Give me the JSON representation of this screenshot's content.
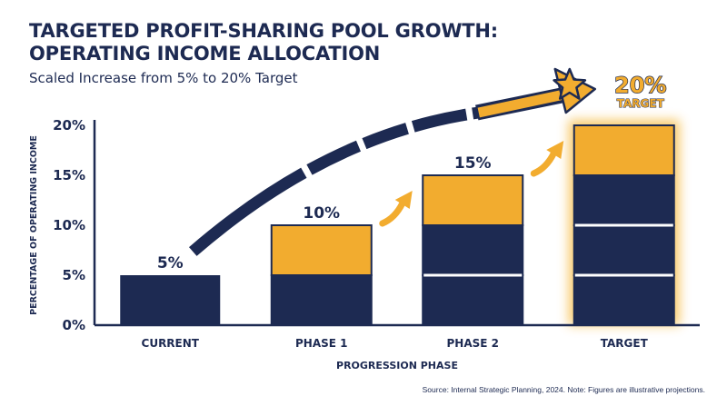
{
  "header": {
    "title_line1": "TARGETED PROFIT-SHARING POOL GROWTH:",
    "title_line2": "OPERATING INCOME ALLOCATION",
    "subtitle": "Scaled Increase from 5% to 20% Target"
  },
  "footer": {
    "source": "Source: Internal Strategic Planning, 2024. Note: Figures are illustrative projections."
  },
  "colors": {
    "navy": "#1d2a52",
    "gold": "#f2ac2f",
    "highlight_glow": "#f7c35a"
  },
  "badge": {
    "value": "20%",
    "label": "TARGET",
    "icon": "star-icon"
  },
  "chart_data": {
    "type": "bar",
    "stacked": true,
    "title": "TARGETED PROFIT-SHARING POOL GROWTH: OPERATING INCOME ALLOCATION",
    "subtitle": "Scaled Increase from 5% to 20% Target",
    "xlabel": "PROGRESSION PHASE",
    "ylabel": "PERCENTAGE OF OPERATING INCOME",
    "ylim": [
      0,
      20
    ],
    "yticks": [
      "0%",
      "5%",
      "10%",
      "15%",
      "20%"
    ],
    "categories": [
      "CURRENT",
      "PHASE 1",
      "PHASE 2",
      "TARGET"
    ],
    "totals": [
      5,
      10,
      15,
      20
    ],
    "data_labels": [
      "5%",
      "10%",
      "15%",
      ""
    ],
    "segments": [
      [
        {
          "value": 5,
          "color": "navy"
        }
      ],
      [
        {
          "value": 5,
          "color": "navy"
        },
        {
          "value": 5,
          "color": "gold"
        }
      ],
      [
        {
          "value": 5,
          "color": "navy"
        },
        {
          "value": 5,
          "color": "navy"
        },
        {
          "value": 5,
          "color": "gold"
        }
      ],
      [
        {
          "value": 5,
          "color": "navy"
        },
        {
          "value": 5,
          "color": "navy"
        },
        {
          "value": 5,
          "color": "navy"
        },
        {
          "value": 5,
          "color": "gold"
        }
      ]
    ],
    "highlighted_category": "TARGET",
    "grid": false,
    "legend": "none"
  }
}
